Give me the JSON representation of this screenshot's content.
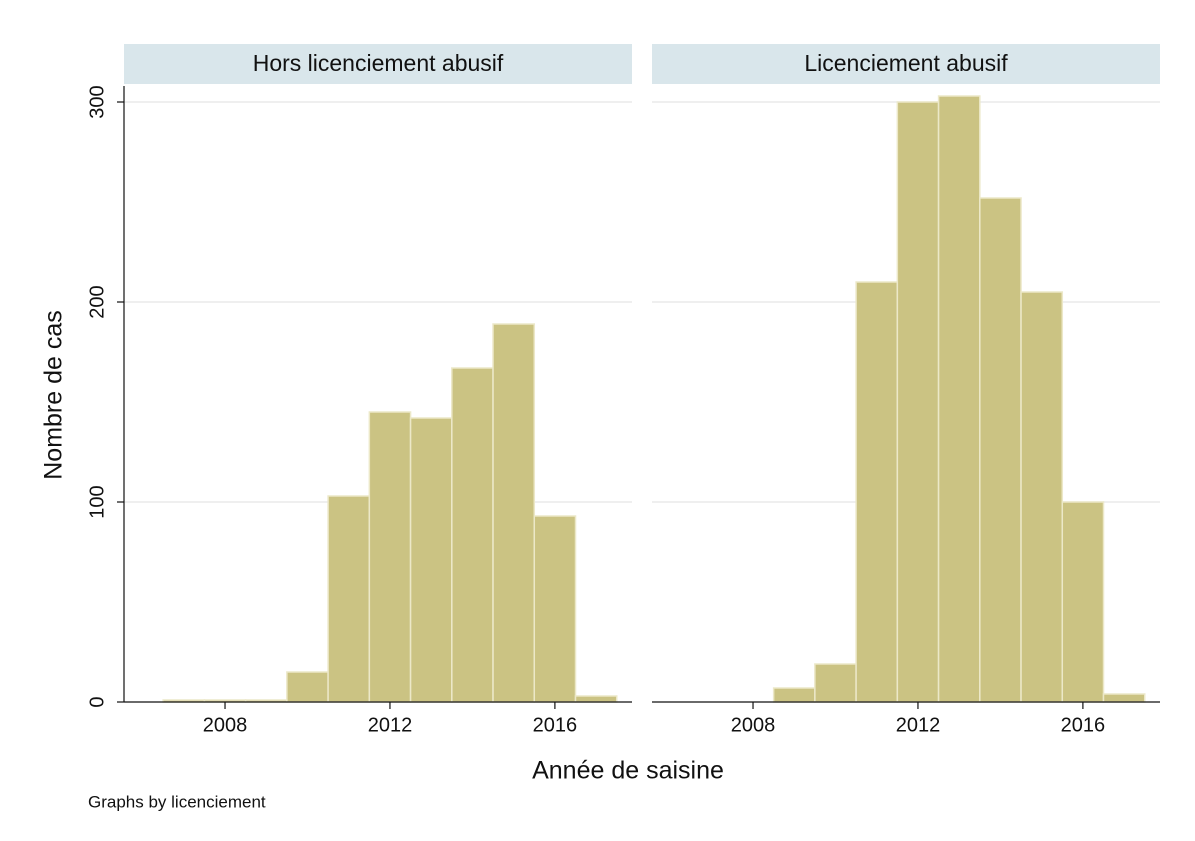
{
  "chart_data": [
    {
      "type": "histogram",
      "title": "Hors licenciement abusif",
      "bins": [
        2006.5,
        2007.5,
        2008.5,
        2009.5,
        2010.5,
        2011.5,
        2012.5,
        2013.5,
        2014.5,
        2015.5,
        2016.5,
        2017.5
      ],
      "counts": [
        1,
        1,
        1,
        15,
        103,
        145,
        142,
        167,
        189,
        93,
        3
      ],
      "color": "#cbc383",
      "xlim": [
        2005.55,
        2017.87
      ],
      "xticks": [
        2008,
        2012,
        2016
      ],
      "ylim": [
        0,
        308
      ],
      "yticks": [
        0,
        100,
        200,
        300
      ],
      "grid": true
    },
    {
      "type": "histogram",
      "title": "Licenciement abusif",
      "bins": [
        2006.5,
        2007.5,
        2008.5,
        2009.5,
        2010.5,
        2011.5,
        2012.5,
        2013.5,
        2014.5,
        2015.5,
        2016.5,
        2017.5
      ],
      "counts": [
        0,
        0,
        7,
        19,
        210,
        300,
        303,
        252,
        205,
        100,
        4
      ],
      "color": "#cbc383",
      "xlim": [
        2005.55,
        2017.87
      ],
      "xticks": [
        2008,
        2012,
        2016
      ],
      "ylim": [
        0,
        308
      ],
      "yticks": [
        0,
        100,
        200,
        300
      ],
      "grid": true
    }
  ],
  "ylabel": "Nombre de cas",
  "xlabel": "Année de saisine",
  "note": "Graphs by licenciement"
}
